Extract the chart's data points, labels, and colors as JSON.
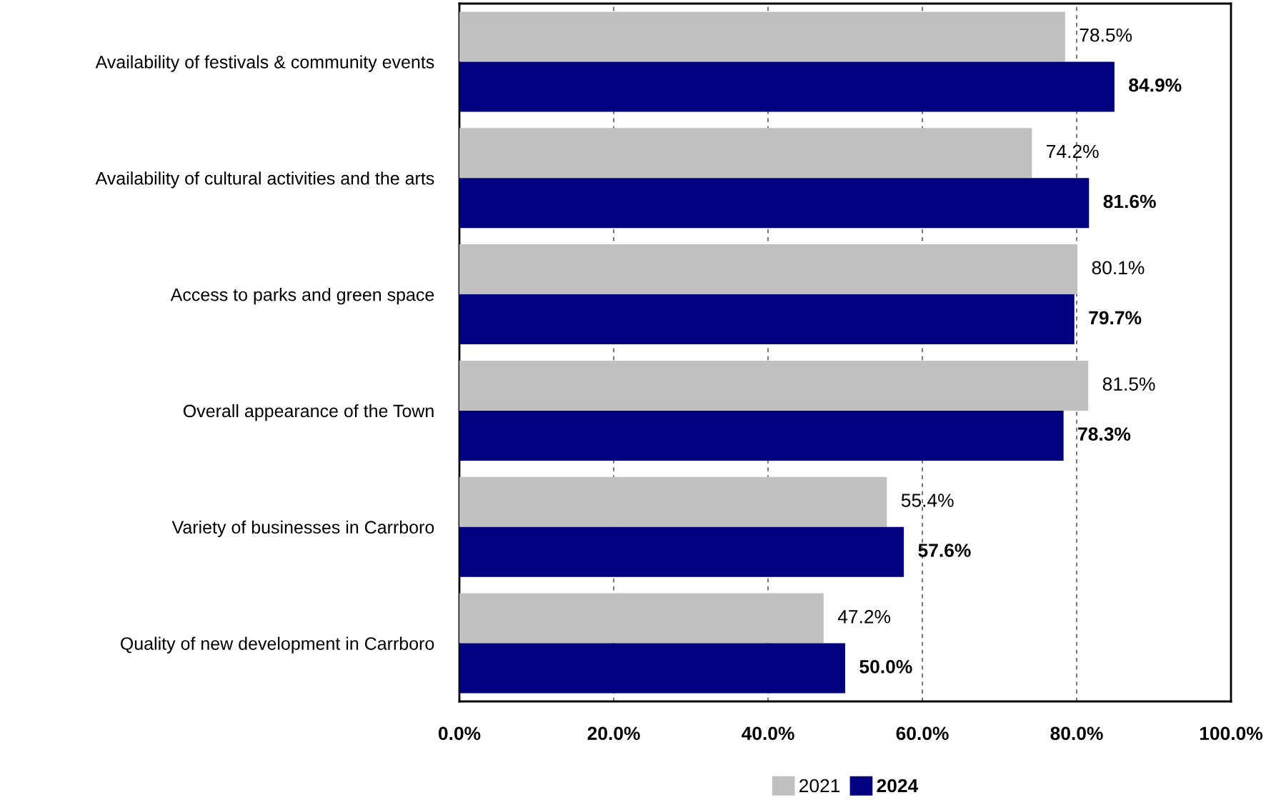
{
  "chart_data": {
    "type": "bar",
    "orientation": "horizontal",
    "categories": [
      "Availability of festivals & community events",
      "Availability of cultural activities and the arts",
      "Access to parks and green space",
      "Overall appearance of the Town",
      "Variety of businesses in Carrboro",
      "Quality of new development in Carrboro"
    ],
    "series": [
      {
        "name": "2021",
        "color": "#c0c0c0",
        "values": [
          78.5,
          74.2,
          80.1,
          81.5,
          55.4,
          47.2
        ],
        "value_labels": [
          "78.5%",
          "74.2%",
          "80.1%",
          "81.5%",
          "55.4%",
          "47.2%"
        ]
      },
      {
        "name": "2024",
        "color": "#000080",
        "values": [
          84.9,
          81.6,
          79.7,
          78.3,
          57.6,
          50.0
        ],
        "value_labels": [
          "84.9%",
          "81.6%",
          "79.7%",
          "78.3%",
          "57.6%",
          "50.0%"
        ]
      }
    ],
    "xlim": [
      0,
      100
    ],
    "xticks": [
      {
        "value": 0,
        "label": "0.0%"
      },
      {
        "value": 20,
        "label": "20.0%"
      },
      {
        "value": 40,
        "label": "40.0%"
      },
      {
        "value": 60,
        "label": "60.0%"
      },
      {
        "value": 80,
        "label": "80.0%"
      },
      {
        "value": 100,
        "label": "100.0%"
      }
    ],
    "grid": "x",
    "legend": "bottom"
  }
}
